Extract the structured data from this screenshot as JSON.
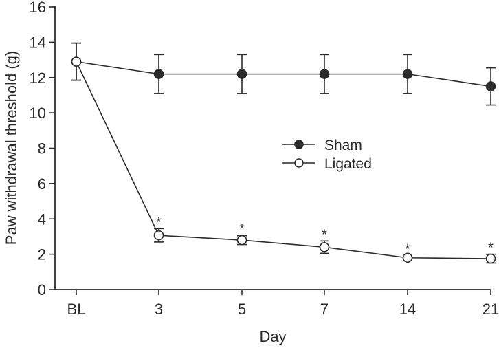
{
  "chart_data": {
    "type": "line",
    "title": "",
    "xlabel": "Day",
    "ylabel": "Paw withdrawal threshold (g)",
    "categories": [
      "BL",
      "3",
      "5",
      "7",
      "14",
      "21"
    ],
    "ylim": [
      0,
      16
    ],
    "yticks": [
      "0",
      "2",
      "4",
      "6",
      "8",
      "10",
      "12",
      "14",
      "16"
    ],
    "grid": false,
    "legend_position": "center-right",
    "series": [
      {
        "name": "Sham",
        "marker": "filled",
        "values": [
          12.9,
          12.2,
          12.2,
          12.2,
          12.2,
          11.5
        ],
        "errors": [
          1.05,
          1.1,
          1.1,
          1.1,
          1.1,
          1.05
        ],
        "annotations": [
          "",
          "",
          "",
          "",
          "",
          ""
        ]
      },
      {
        "name": "Ligated",
        "marker": "open",
        "values": [
          12.9,
          3.07,
          2.8,
          2.4,
          1.8,
          1.75
        ],
        "errors": [
          1.05,
          0.38,
          0.25,
          0.35,
          0.12,
          0.25
        ],
        "annotations": [
          "",
          "*",
          "*",
          "*",
          "*",
          "*"
        ]
      }
    ]
  },
  "colors": {
    "line": "#2b2b2b",
    "background": "#ffffff"
  }
}
